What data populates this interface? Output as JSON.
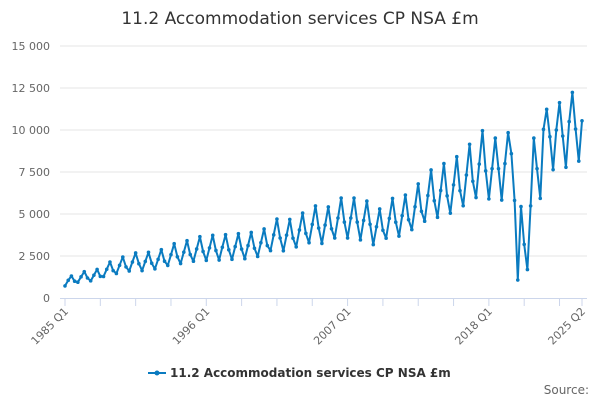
{
  "chart_data": {
    "type": "line",
    "title": "11.2 Accommodation services CP NSA £m",
    "xlabel": "",
    "ylabel": "",
    "ylim": [
      0,
      15000
    ],
    "yticks": [
      0,
      2500,
      5000,
      7500,
      10000,
      12500,
      15000
    ],
    "ytick_labels": [
      "0",
      "2 500",
      "5 000",
      "7 500",
      "10 000",
      "12 500",
      "15 000"
    ],
    "xtick_labels": [
      "1985 Q1",
      "1996 Q1",
      "2007 Q1",
      "2018 Q1",
      "2025 Q2"
    ],
    "x_start": "1985 Q1",
    "x_end": "2025 Q2",
    "grid": true,
    "legend_position": "bottom",
    "series": [
      {
        "name": "11.2 Accommodation services CP NSA £m",
        "color": "#0a7bc0",
        "values": [
          720,
          1050,
          1310,
          1000,
          940,
          1260,
          1570,
          1190,
          1020,
          1360,
          1700,
          1290,
          1280,
          1710,
          2140,
          1630,
          1460,
          1950,
          2440,
          1850,
          1610,
          2140,
          2680,
          2040,
          1630,
          2180,
          2720,
          2070,
          1730,
          2300,
          2880,
          2190,
          1940,
          2580,
          3230,
          2450,
          2050,
          2730,
          3410,
          2590,
          2190,
          2920,
          3650,
          2770,
          2240,
          2980,
          3730,
          2830,
          2260,
          3020,
          3770,
          2870,
          2300,
          3060,
          3830,
          2910,
          2340,
          3120,
          3900,
          2960,
          2470,
          3290,
          4110,
          3120,
          2820,
          3760,
          4700,
          3570,
          2810,
          3740,
          4680,
          3560,
          3040,
          4050,
          5060,
          3850,
          3290,
          4380,
          5480,
          4160,
          3250,
          4340,
          5420,
          4120,
          3570,
          4760,
          5950,
          4520,
          3570,
          4760,
          5950,
          4520,
          3460,
          4620,
          5770,
          4390,
          3180,
          4240,
          5300,
          4030,
          3560,
          4740,
          5930,
          4510,
          3680,
          4900,
          6130,
          4660,
          4070,
          5430,
          6790,
          5160,
          4570,
          6100,
          7620,
          5790,
          4800,
          6400,
          8000,
          6080,
          5050,
          6730,
          8410,
          6390,
          5490,
          7320,
          9150,
          6950,
          5980,
          7970,
          9960,
          7570,
          5900,
          7700,
          9520,
          7700,
          5830,
          8000,
          9840,
          8590,
          5810,
          1070,
          5440,
          3190,
          1690,
          5480,
          9520,
          7700,
          5930,
          10040,
          11230,
          9600,
          7640,
          10000,
          11630,
          9640,
          7780,
          10500,
          12240,
          10060,
          8150,
          10550
        ]
      }
    ],
    "source_label": "Source:"
  }
}
